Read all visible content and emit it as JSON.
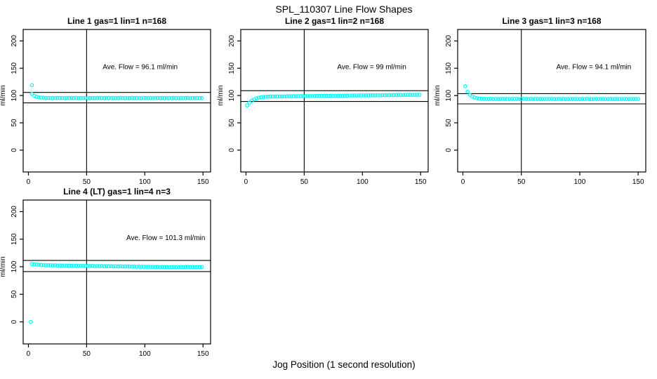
{
  "page": {
    "title": "SPL_110307  Line Flow Shapes",
    "xlabel": "Jog Position (1 second resolution)",
    "ylabel": "ml/min",
    "background_color": "#ffffff",
    "frame_color": "#000000",
    "point_color": "#00ffff"
  },
  "chart_data": [
    {
      "type": "scatter",
      "title": "Line 1 gas=1 lin=1 n=168",
      "annotation": "Ave. Flow =  96.1  ml/min",
      "ave_flow": 96.1,
      "ylabel": "ml/min",
      "xticks": [
        0,
        50,
        100,
        150
      ],
      "yticks": [
        0,
        50,
        100,
        150,
        200
      ],
      "xlim": [
        -4.5,
        156.5
      ],
      "ylim": [
        -40,
        221
      ],
      "vline": 50,
      "hlines": [
        86.5,
        105.7
      ],
      "ann_pos": [
        96,
        152
      ],
      "outliers": [
        [
          3,
          119
        ]
      ],
      "band": {
        "x0": 3,
        "dx": 2,
        "y": [
          103,
          99.5,
          97.8,
          96.8,
          96.2,
          95.8,
          95.5,
          95.7,
          95.4,
          95.6,
          95.3,
          95.5,
          95.7,
          95.4,
          95.2,
          95.6,
          95.3,
          95.5,
          95.4,
          95.6,
          95.2,
          95.5,
          95.3,
          95.6,
          95.4,
          95.2,
          95.5,
          95.3,
          95.6,
          95.4,
          95.5,
          95.2,
          95.4,
          95.6,
          95.3,
          95.5,
          95.2,
          95.4,
          95.6,
          95.3,
          95.5,
          95.4,
          95.2,
          95.6,
          95.3,
          95.5,
          95.4,
          95.2,
          95.6,
          95.4,
          95.3,
          95.5,
          95.2,
          95.4,
          95.6,
          95.3,
          95.5,
          95.4,
          95.2,
          95.5,
          95.3,
          95.6,
          95.4,
          95.2,
          95.5,
          95.3,
          95.4,
          95.6,
          95.2,
          95.4,
          95.3,
          95.5,
          95.4,
          95.3
        ]
      }
    },
    {
      "type": "scatter",
      "title": "Line 2 gas=1 lin=2 n=168",
      "annotation": "Ave. Flow =  99  ml/min",
      "ave_flow": 99,
      "ylabel": "ml/min",
      "xticks": [
        0,
        50,
        100,
        150
      ],
      "yticks": [
        0,
        50,
        100,
        150,
        200
      ],
      "xlim": [
        -4.5,
        156.5
      ],
      "ylim": [
        -40,
        221
      ],
      "vline": 50,
      "hlines": [
        89.1,
        108.9
      ],
      "ann_pos": [
        108,
        152
      ],
      "outliers": [
        [
          1,
          82
        ]
      ],
      "band": {
        "x0": 3,
        "dx": 2,
        "y": [
          87,
          90.5,
          93,
          94.8,
          96,
          96.8,
          97.3,
          97.7,
          98,
          98.2,
          98.3,
          98.4,
          98.3,
          98.5,
          98.4,
          98.6,
          98.5,
          98.7,
          98.6,
          98.8,
          98.7,
          98.9,
          98.8,
          99,
          98.9,
          99.1,
          99,
          99.2,
          99.1,
          99.3,
          99.2,
          99.4,
          99.3,
          99.5,
          99.4,
          99.6,
          99.5,
          99.7,
          99.6,
          99.8,
          99.7,
          99.9,
          99.8,
          100,
          99.9,
          100.1,
          100,
          100.2,
          100.1,
          100.3,
          100.2,
          100.4,
          100.3,
          100.5,
          100.4,
          100.6,
          100.5,
          100.7,
          100.6,
          100.8,
          100.7,
          100.9,
          100.8,
          101,
          100.9,
          101.1,
          101,
          101.2,
          101.1,
          101.3,
          101.2,
          101.4,
          101.3,
          101.5
        ]
      }
    },
    {
      "type": "scatter",
      "title": "Line 3 gas=1 lin=3 n=168",
      "annotation": "Ave. Flow =  94.1  ml/min",
      "ave_flow": 94.1,
      "ylabel": "ml/min",
      "xticks": [
        0,
        50,
        100,
        150
      ],
      "yticks": [
        0,
        50,
        100,
        150,
        200
      ],
      "xlim": [
        -4.5,
        156.5
      ],
      "ylim": [
        -40,
        221
      ],
      "vline": 50,
      "hlines": [
        84.7,
        103.5
      ],
      "ann_pos": [
        112,
        152
      ],
      "outliers": [],
      "band": {
        "x0": 2,
        "dx": 2,
        "y": [
          117,
          107,
          101,
          98,
          96.3,
          95.2,
          94.6,
          94.2,
          93.9,
          93.8,
          93.7,
          93.9,
          93.6,
          93.8,
          93.5,
          93.7,
          93.9,
          93.6,
          93.8,
          93.5,
          93.7,
          93.6,
          93.8,
          93.5,
          93.7,
          93.9,
          93.6,
          93.4,
          93.7,
          93.5,
          93.8,
          93.6,
          93.4,
          93.7,
          93.5,
          93.8,
          93.6,
          93.7,
          93.4,
          93.6,
          93.8,
          93.5,
          93.7,
          93.4,
          93.6,
          93.8,
          93.5,
          93.7,
          93.6,
          93.4,
          93.7,
          93.5,
          93.8,
          93.6,
          93.4,
          93.6,
          93.8,
          93.5,
          93.7,
          93.4,
          93.6,
          93.5,
          93.8,
          93.6,
          93.4,
          93.7,
          93.5,
          93.6,
          93.8,
          93.4,
          93.6,
          93.5,
          93.7,
          93.5,
          93.6
        ]
      }
    },
    {
      "type": "scatter",
      "title": "Line 4 (LT) gas=1 lin=4 n=3",
      "annotation": "Ave. Flow =  101.3  ml/min",
      "ave_flow": 101.3,
      "ylabel": "ml/min",
      "xticks": [
        0,
        50,
        100,
        150
      ],
      "yticks": [
        0,
        50,
        100,
        150,
        200
      ],
      "xlim": [
        -4.5,
        156.5
      ],
      "ylim": [
        -40,
        221
      ],
      "vline": 50,
      "hlines": [
        91.2,
        111.4
      ],
      "ann_pos": [
        118,
        152
      ],
      "outliers": [
        [
          2,
          0
        ]
      ],
      "band": {
        "x0": 3,
        "dx": 2,
        "y": [
          105,
          104.4,
          103.9,
          103.6,
          103.2,
          103,
          102.8,
          102.6,
          102.8,
          102.4,
          102.6,
          102.2,
          102.4,
          102,
          102.3,
          101.9,
          102.1,
          101.8,
          102,
          101.6,
          101.9,
          101.5,
          101.8,
          101.4,
          101.6,
          101.3,
          101.5,
          101.1,
          101.4,
          101,
          101.3,
          100.9,
          101.1,
          100.8,
          101,
          100.6,
          100.9,
          100.5,
          100.8,
          100.4,
          100.6,
          100.3,
          100.5,
          100.1,
          100.4,
          100,
          100.2,
          99.9,
          100.1,
          99.7,
          100,
          99.6,
          99.8,
          99.5,
          99.7,
          99.3,
          99.6,
          99.2,
          99.4,
          99.1,
          99.3,
          99.5,
          99.2,
          99.4,
          99.6,
          99.3,
          99.5,
          99.7,
          99.4,
          99.6,
          99.3,
          99.5,
          99.4,
          99.6
        ]
      }
    }
  ]
}
